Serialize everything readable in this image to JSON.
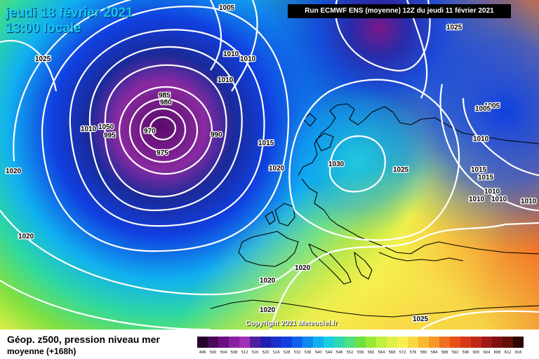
{
  "header": {
    "date_line": "jeudi 18 février 2021",
    "time_line": "13:00 locale",
    "run_info": "Run ECMWF ENS (moyenne) 12Z du jeudi 11 février 2021"
  },
  "footer": {
    "param_title": "Géop. z500, pression niveau mer",
    "param_sub": "moyenne  (+168h)",
    "copyright": "Copyright 2021 Meteociel.fr"
  },
  "colors": {
    "deep_low": "#5a0a6a",
    "violet": "#8a20a0",
    "navy": "#1a2a9a",
    "blue": "#1040e0",
    "cyan": "#10b8f0",
    "teal": "#30d8a0",
    "green": "#70e040",
    "yellow_green": "#c8f040",
    "yellow": "#f8f050",
    "orange": "#f8a030",
    "red_orange": "#f06020",
    "isobar": "#ffffff",
    "land_outline": "#000000"
  },
  "isobar_labels": [
    {
      "text": "1005"
    },
    {
      "text": "1025"
    },
    {
      "text": "1025"
    },
    {
      "text": "1010"
    },
    {
      "text": "1010"
    },
    {
      "text": "1010"
    },
    {
      "text": "985"
    },
    {
      "text": "980"
    },
    {
      "text": "970"
    },
    {
      "text": "975"
    },
    {
      "text": "990"
    },
    {
      "text": "1010"
    },
    {
      "text": "1050"
    },
    {
      "text": "995"
    },
    {
      "text": "1015"
    },
    {
      "text": "1020"
    },
    {
      "text": "1030"
    },
    {
      "text": "1025"
    },
    {
      "text": "1005"
    },
    {
      "text": "1005"
    },
    {
      "text": "1010"
    },
    {
      "text": "1015"
    },
    {
      "text": "1015"
    },
    {
      "text": "1010"
    },
    {
      "text": "1010"
    },
    {
      "text": "1010"
    },
    {
      "text": "1010"
    },
    {
      "text": "1020"
    },
    {
      "text": "1020"
    },
    {
      "text": "1020"
    },
    {
      "text": "1020"
    },
    {
      "text": "1020"
    },
    {
      "text": "1025"
    }
  ],
  "legend": {
    "values": [
      "496",
      "500",
      "504",
      "508",
      "512",
      "516",
      "520",
      "524",
      "528",
      "532",
      "536",
      "540",
      "544",
      "548",
      "552",
      "556",
      "560",
      "564",
      "568",
      "572",
      "576",
      "580",
      "584",
      "588",
      "592",
      "596",
      "600",
      "604",
      "608",
      "612",
      "616"
    ],
    "colors": [
      "#2a0030",
      "#4a0858",
      "#6a1080",
      "#8a20a0",
      "#a030b8",
      "#5020a0",
      "#2020b0",
      "#1a30c8",
      "#1040e0",
      "#1060f0",
      "#1088f0",
      "#10b0f0",
      "#18d0e0",
      "#30d8b0",
      "#50e080",
      "#70e040",
      "#98e838",
      "#c0f040",
      "#e0f048",
      "#f8f050",
      "#f8d840",
      "#f8b830",
      "#f89828",
      "#f07020",
      "#e85018",
      "#d83818",
      "#c02818",
      "#a01818",
      "#801010",
      "#601008",
      "#300800"
    ]
  }
}
